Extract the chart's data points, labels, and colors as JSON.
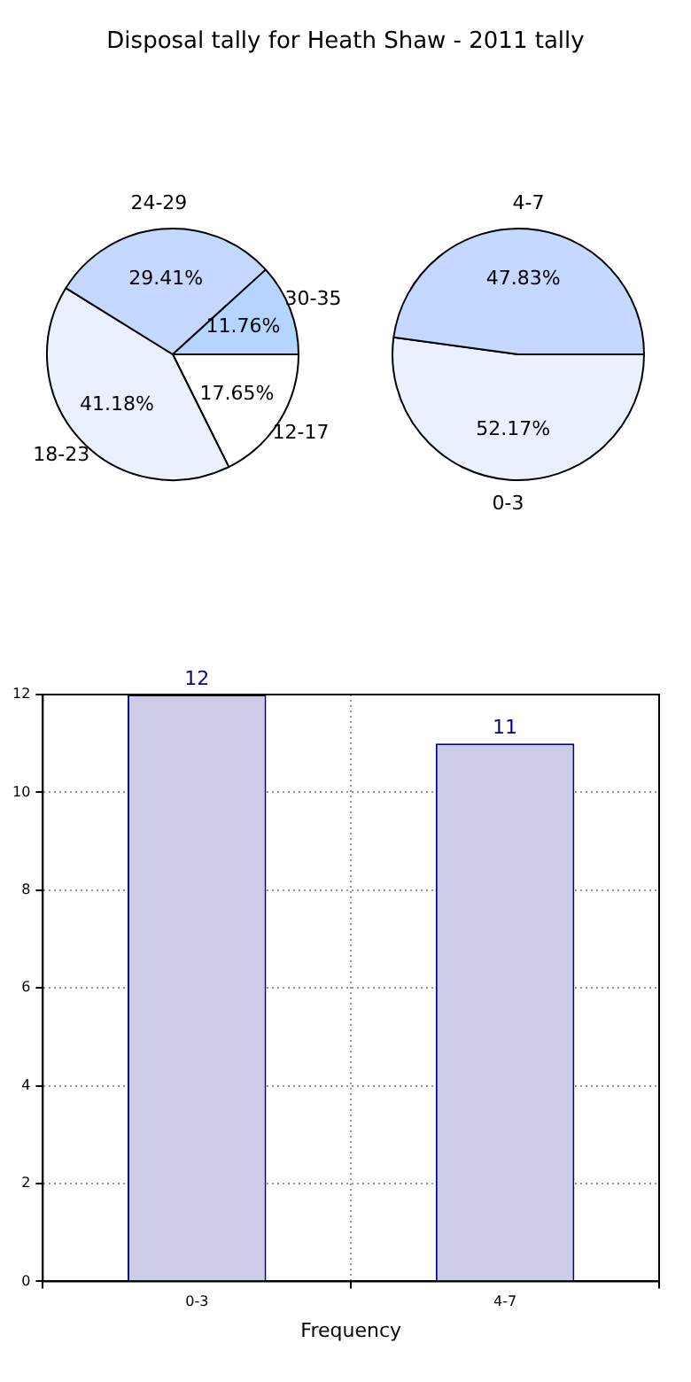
{
  "chart_data": [
    {
      "type": "pie",
      "title": "Disposal tally for Heath Shaw - 2011 tally",
      "categories": [
        "12-17",
        "18-23",
        "24-29",
        "30-35"
      ],
      "colors": [
        "#ffffff",
        "#eaf0ff",
        "#c5d8ff",
        "#b3d5ff"
      ],
      "values": [
        17.65,
        41.18,
        29.41,
        11.76
      ],
      "value_labels": [
        "17.65%",
        "41.18%",
        "29.41%",
        "11.76%"
      ]
    },
    {
      "type": "pie",
      "categories": [
        "0-3",
        "4-7"
      ],
      "colors": [
        "#eaf0ff",
        "#c5d8ff"
      ],
      "values": [
        52.17,
        47.83
      ],
      "value_labels": [
        "52.17%",
        "47.83%"
      ]
    },
    {
      "type": "bar",
      "categories": [
        "0-3",
        "4-7"
      ],
      "values": [
        12,
        11
      ],
      "color": "#ccccE6",
      "xlabel": "Frequency",
      "ylim": [
        0,
        12
      ],
      "yticks": [
        0,
        2,
        4,
        6,
        8,
        10,
        12
      ],
      "grid": true,
      "data_labels": true
    }
  ]
}
